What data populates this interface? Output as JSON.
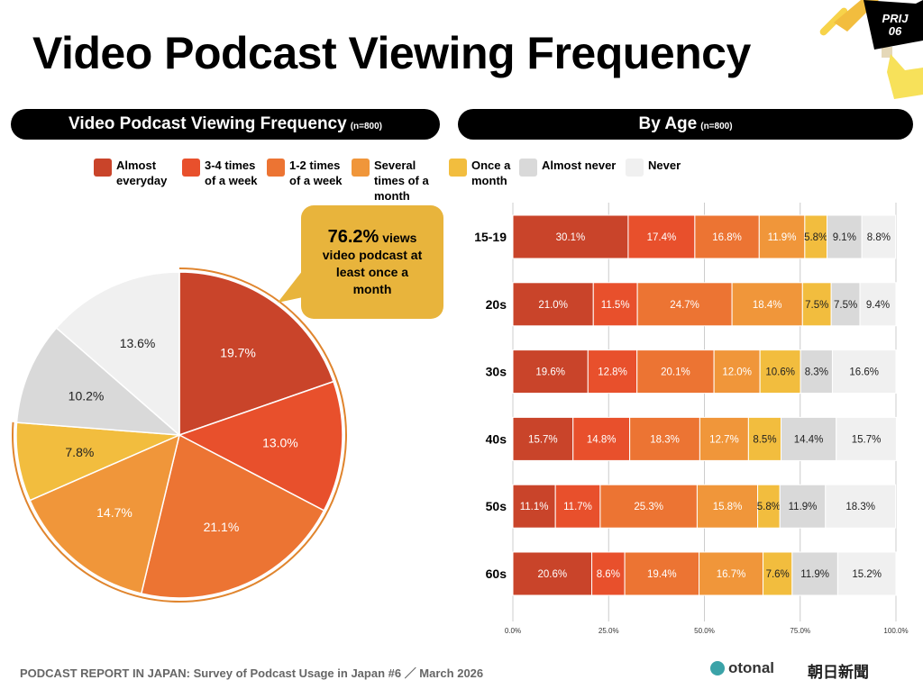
{
  "title": "Video Podcast Viewing Frequency",
  "badge": "PRIJ 06",
  "left_header": {
    "title": "Video Podcast Viewing Frequency",
    "n": "(n=800)"
  },
  "right_header": {
    "title": "By Age",
    "n": "(n=800)"
  },
  "legend": [
    {
      "label": "Almost everyday",
      "color": "#C9442A"
    },
    {
      "label": "3-4 times of a week",
      "color": "#E8502C"
    },
    {
      "label": "1-2 times of a week",
      "color": "#EC7433"
    },
    {
      "label": "Several times of a month",
      "color": "#F0963A"
    },
    {
      "label": "Once a month",
      "color": "#F2BD3E"
    },
    {
      "label": "Almost never",
      "color": "#D9D9D9"
    },
    {
      "label": "Never",
      "color": "#F0F0F0"
    }
  ],
  "callout": {
    "value": "76.2%",
    "text1": "views",
    "text2": "video podcast at least once a month"
  },
  "chart_data": [
    {
      "type": "pie",
      "labels": [
        "Almost everyday",
        "3-4 times of a week",
        "1-2 times of a week",
        "Several times of a month",
        "Once a month",
        "Almost never",
        "Never"
      ],
      "values": [
        19.7,
        13.0,
        21.1,
        14.7,
        7.8,
        10.2,
        13.6
      ],
      "data_labels": [
        "19.7%",
        "13.0%",
        "21.1%",
        "14.7%",
        "7.8%",
        "10.2%",
        "13.6%"
      ]
    },
    {
      "type": "bar",
      "orientation": "horizontal",
      "stacked": true,
      "categories": [
        "15-19",
        "20s",
        "30s",
        "40s",
        "50s",
        "60s"
      ],
      "series": [
        {
          "name": "Almost everyday",
          "values": [
            30.1,
            21.0,
            19.6,
            15.7,
            11.1,
            20.6
          ]
        },
        {
          "name": "3-4 times of a week",
          "values": [
            17.4,
            11.5,
            12.8,
            14.8,
            11.7,
            8.6
          ]
        },
        {
          "name": "1-2 times of a week",
          "values": [
            16.8,
            24.7,
            20.1,
            18.3,
            25.3,
            19.4
          ]
        },
        {
          "name": "Several times of a month",
          "values": [
            11.9,
            18.4,
            12.0,
            12.7,
            15.8,
            16.7
          ]
        },
        {
          "name": "Once a month",
          "values": [
            5.8,
            7.5,
            10.6,
            8.5,
            5.8,
            7.6
          ]
        },
        {
          "name": "Almost never",
          "values": [
            9.1,
            7.5,
            8.3,
            14.4,
            11.9,
            11.9
          ]
        },
        {
          "name": "Never",
          "values": [
            8.8,
            9.4,
            16.6,
            15.7,
            18.3,
            15.2
          ]
        }
      ],
      "xlim": [
        0,
        100
      ],
      "xticks": [
        "0.0%",
        "25.0%",
        "50.0%",
        "75.0%",
        "100.0%"
      ],
      "grid": true
    }
  ],
  "footer": "PODCAST REPORT IN JAPAN: Survey of Podcast Usage in Japan #6 ／ March 2026",
  "logos": {
    "otonal": "otonal",
    "asahi": "朝日新聞"
  }
}
